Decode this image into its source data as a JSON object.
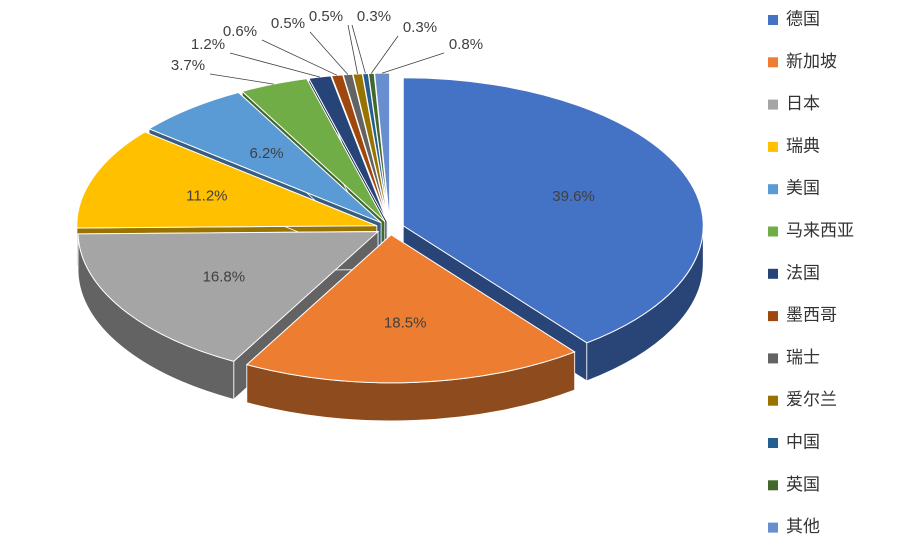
{
  "chart_data": {
    "type": "pie3d",
    "categories": [
      "德国",
      "新加坡",
      "日本",
      "瑞典",
      "美国",
      "马来西亚",
      "法国",
      "墨西哥",
      "瑞士",
      "爱尔兰",
      "中国",
      "英国",
      "其他"
    ],
    "values": [
      39.6,
      18.5,
      16.8,
      11.2,
      6.2,
      3.7,
      1.2,
      0.6,
      0.5,
      0.5,
      0.3,
      0.3,
      0.8
    ],
    "value_labels": [
      "39.6%",
      "18.5%",
      "16.8%",
      "11.2%",
      "6.2%",
      "3.7%",
      "1.2%",
      "0.6%",
      "0.5%",
      "0.5%",
      "0.3%",
      "0.3%",
      "0.8%"
    ],
    "colors": [
      "#4472c4",
      "#ed7d31",
      "#a5a5a5",
      "#ffc000",
      "#5b9bd5",
      "#70ad47",
      "#264478",
      "#9e480e",
      "#636363",
      "#997300",
      "#255e91",
      "#43682b",
      "#698ed0"
    ],
    "legend": "right"
  }
}
